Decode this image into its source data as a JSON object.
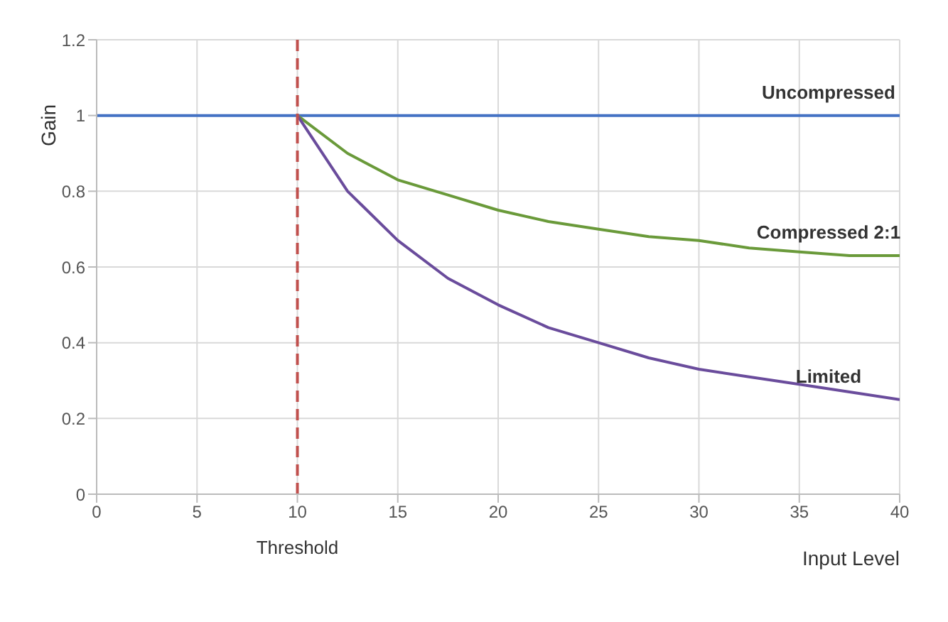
{
  "chart_data": {
    "type": "line",
    "xlabel": "Input Level",
    "ylabel": "Gain",
    "series": [
      {
        "name": "Uncompressed",
        "color": "#4472c4",
        "x": [
          0,
          40
        ],
        "values": [
          1,
          1
        ]
      },
      {
        "name": "Compressed 2:1",
        "color": "#6a9a3a",
        "x": [
          10,
          12.5,
          15,
          17.5,
          20,
          22.5,
          25,
          27.5,
          30,
          32.5,
          35,
          37.5,
          40
        ],
        "values": [
          1,
          0.9,
          0.83,
          0.79,
          0.75,
          0.72,
          0.7,
          0.68,
          0.67,
          0.65,
          0.64,
          0.63,
          0.63
        ]
      },
      {
        "name": "Limited",
        "color": "#6a4c9c",
        "x": [
          10,
          12.5,
          15,
          17.5,
          20,
          22.5,
          25,
          27.5,
          30,
          32.5,
          35,
          37.5,
          40
        ],
        "values": [
          1,
          0.8,
          0.67,
          0.57,
          0.5,
          0.44,
          0.4,
          0.36,
          0.33,
          0.31,
          0.29,
          0.27,
          0.25
        ]
      }
    ],
    "xlim": [
      0,
      40
    ],
    "xticks": [
      0,
      5,
      10,
      15,
      20,
      25,
      30,
      35,
      40
    ],
    "ylim": [
      0,
      1.2
    ],
    "yticks": [
      0,
      0.2,
      0.4,
      0.6,
      0.8,
      1,
      1.2
    ],
    "ref_lines": [
      {
        "axis": "x",
        "value": 10,
        "label": "Threshold",
        "color": "#c0504d",
        "line_style": "dashed"
      }
    ],
    "grid": true,
    "legend": false,
    "marker": "none",
    "line_style": "solid"
  }
}
